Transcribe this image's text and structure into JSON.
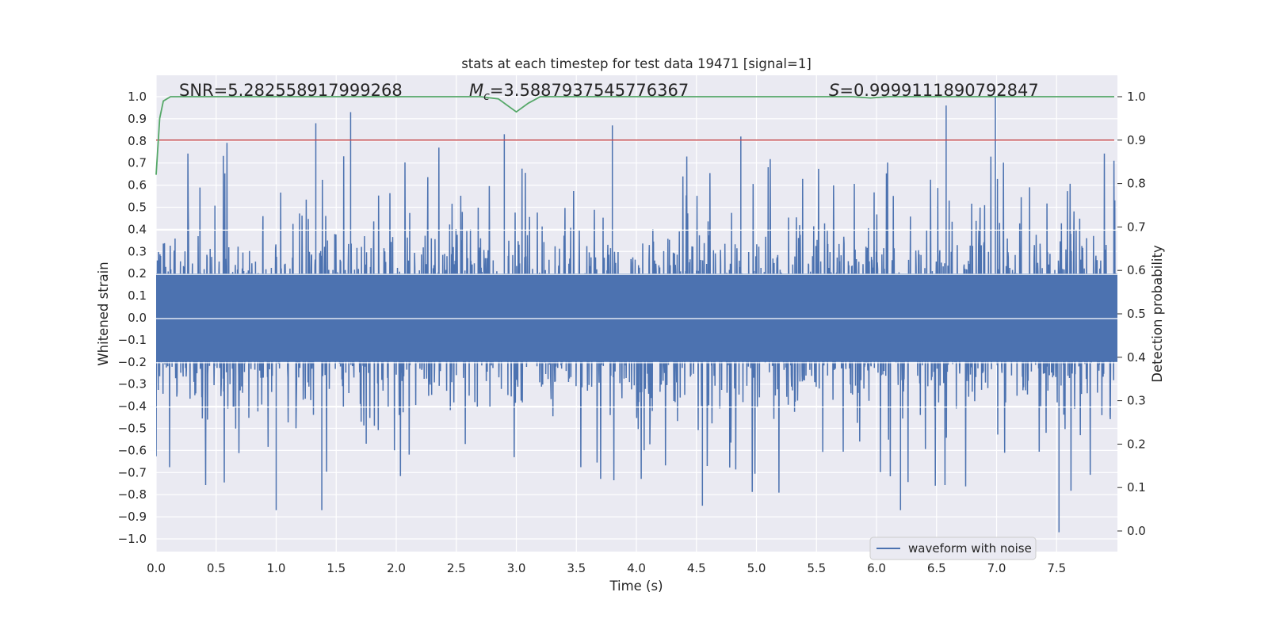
{
  "chart_data": {
    "type": "line",
    "title": "stats at each timestep for test data 19471 [signal=1]",
    "xlabel": "Time (s)",
    "ylabel": "Whitened strain",
    "y2label": "Detection probability",
    "xlim": [
      0.0,
      8.0
    ],
    "ylim": [
      -1.05,
      1.05
    ],
    "y2lim": [
      -0.05,
      1.05
    ],
    "xticks": [
      "0.0",
      "0.5",
      "1.0",
      "1.5",
      "2.0",
      "2.5",
      "3.0",
      "3.5",
      "4.0",
      "4.5",
      "5.0",
      "5.5",
      "6.0",
      "6.5",
      "7.0",
      "7.5"
    ],
    "yticks": [
      "1.0",
      "0.9",
      "0.8",
      "0.7",
      "0.6",
      "0.5",
      "0.4",
      "0.3",
      "0.2",
      "0.1",
      "0.0",
      "-0.1",
      "-0.2",
      "-0.3",
      "-0.4",
      "-0.5",
      "-0.6",
      "-0.7",
      "-0.8",
      "-0.9",
      "-1.0"
    ],
    "y2ticks": [
      "1.0",
      "0.9",
      "0.8",
      "0.7",
      "0.6",
      "0.5",
      "0.4",
      "0.3",
      "0.2",
      "0.1",
      "0.0"
    ],
    "grid": true,
    "legend_position": "bottom-right",
    "stats": {
      "snr": {
        "label": "SNR=5.282558917999268"
      },
      "mc": {
        "symbol": "M",
        "subscript": "c",
        "value": "=3.5887937545776367"
      },
      "s": {
        "symbol": "S",
        "value": "=0.9999111890792847"
      }
    },
    "series": [
      {
        "name": "waveform with noise",
        "axis": "left",
        "color": "#4c72b0",
        "description_values": "dense noise, envelope roughly +/-0.45 with spikes",
        "peaks": [
          {
            "x": 1.33,
            "y": 0.88
          },
          {
            "x": 1.62,
            "y": 0.93
          },
          {
            "x": 2.9,
            "y": 0.83
          },
          {
            "x": 3.8,
            "y": 0.87
          },
          {
            "x": 4.87,
            "y": 0.82
          },
          {
            "x": 6.58,
            "y": 0.96
          },
          {
            "x": 6.99,
            "y": 1.0
          },
          {
            "x": 7.52,
            "y": -0.97
          },
          {
            "x": 1.38,
            "y": -0.87
          },
          {
            "x": 1.0,
            "y": -0.87
          },
          {
            "x": 4.55,
            "y": -0.85
          },
          {
            "x": 6.2,
            "y": -0.87
          }
        ]
      },
      {
        "axis": "right",
        "color": "#55a868",
        "x": [
          0.0,
          0.03,
          0.06,
          0.12,
          0.5,
          2.7,
          2.85,
          3.0,
          3.1,
          3.2,
          3.5,
          5.8,
          5.95,
          6.1,
          7.98
        ],
        "y": [
          0.82,
          0.95,
          0.99,
          1.0,
          1.0,
          1.0,
          0.995,
          0.965,
          0.985,
          1.0,
          1.0,
          1.0,
          0.997,
          1.0,
          1.0
        ]
      },
      {
        "axis": "right",
        "color": "#c44e52",
        "x": [
          0.0,
          7.98
        ],
        "y": [
          0.9,
          0.9
        ]
      }
    ]
  }
}
